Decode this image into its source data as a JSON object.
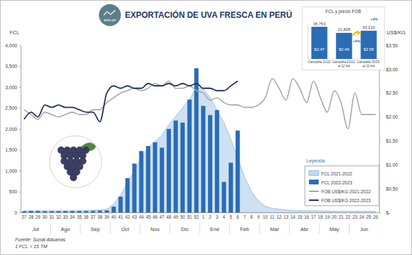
{
  "chart_data": [
    {
      "type": "combo",
      "title": "EXPORTACIÓN DE UVA FRESCA EN PERÚ",
      "logo": "adoc.pe",
      "ylabel": "FCL",
      "y2label": "US$/KG",
      "categories": [
        "27",
        "28",
        "29",
        "30",
        "31",
        "32",
        "33",
        "34",
        "35",
        "36",
        "37",
        "38",
        "39",
        "40",
        "41",
        "42",
        "43",
        "44",
        "45",
        "46",
        "47",
        "48",
        "49",
        "50",
        "51",
        "52",
        "1",
        "2",
        "3",
        "4",
        "5",
        "6",
        "7",
        "8",
        "9",
        "10",
        "11",
        "12",
        "13",
        "14",
        "15",
        "16",
        "17",
        "18",
        "19",
        "20",
        "21",
        "22",
        "23",
        "24",
        "25",
        "26"
      ],
      "month_labels": [
        "Jul",
        "Ago",
        "Sep",
        "Oct",
        "Nov",
        "Dic",
        "Ene",
        "Feb",
        "Mar",
        "Abr",
        "May",
        "Jun"
      ],
      "series": [
        {
          "name": "FCL 2021-2022",
          "type": "area",
          "color": "#c5daf0",
          "values": [
            40,
            40,
            45,
            45,
            40,
            40,
            45,
            45,
            50,
            50,
            55,
            60,
            80,
            200,
            420,
            700,
            1000,
            1300,
            1550,
            1700,
            1850,
            2100,
            2300,
            2500,
            2700,
            3000,
            2950,
            2750,
            2450,
            2150,
            1750,
            1300,
            850,
            500,
            280,
            150,
            100,
            80,
            60,
            50,
            45,
            40,
            40,
            35,
            35,
            30,
            30,
            30,
            30,
            30,
            30,
            30
          ]
        },
        {
          "name": "FCL 2022-2023",
          "type": "bar",
          "color": "#2a6db5",
          "values": [
            30,
            35,
            35,
            30,
            30,
            30,
            35,
            35,
            35,
            35,
            40,
            45,
            50,
            140,
            380,
            820,
            1170,
            1470,
            1590,
            1680,
            1550,
            2000,
            2200,
            2150,
            2700,
            3450,
            2550,
            2330,
            2450,
            730,
            1190,
            1960,
            null,
            null,
            null,
            null,
            null,
            null,
            null,
            null,
            null,
            null,
            null,
            null,
            null,
            null,
            null,
            null,
            null,
            null,
            null,
            null
          ]
        },
        {
          "name": "FOB US$/KG 2021-2022",
          "type": "line",
          "axis": "y2",
          "color": "#a6a6a6",
          "values": [
            2.15,
            2.05,
            1.95,
            2.1,
            2.05,
            2.0,
            2.05,
            2.1,
            2.05,
            2.05,
            2.15,
            2.15,
            2.3,
            2.4,
            2.5,
            2.55,
            2.6,
            2.55,
            2.6,
            2.7,
            2.65,
            2.75,
            2.6,
            2.6,
            2.65,
            2.55,
            2.5,
            2.35,
            2.4,
            2.3,
            2.25,
            2.25,
            2.2,
            2.2,
            2.25,
            2.4,
            2.8,
            2.6,
            2.35,
            2.8,
            2.6,
            2.3,
            2.75,
            2.4,
            2.1,
            2.55,
            2.3,
            1.75,
            2.5,
            2.05,
            2.05,
            2.05
          ]
        },
        {
          "name": "FOB US$/KG 2022-2023",
          "type": "line",
          "axis": "y2",
          "color": "#1f2f5c",
          "values": [
            1.95,
            2.1,
            2.0,
            2.25,
            2.2,
            2.25,
            2.2,
            2.2,
            2.15,
            2.1,
            2.1,
            1.9,
            2.5,
            2.65,
            2.6,
            2.65,
            2.6,
            2.6,
            2.7,
            2.65,
            2.65,
            2.7,
            2.65,
            2.7,
            2.65,
            2.7,
            2.6,
            2.6,
            2.55,
            2.55,
            2.65,
            2.75,
            null,
            null,
            null,
            null,
            null,
            null,
            null,
            null,
            null,
            null,
            null,
            null,
            null,
            null,
            null,
            null,
            null,
            null,
            null,
            null
          ]
        }
      ],
      "ylim": [
        0,
        4000
      ],
      "yticks": [
        0,
        500,
        {
          "value": 1000,
          "label": "1,000"
        },
        {
          "value": 1500,
          "label": "1,500"
        },
        {
          "value": 2000,
          "label": "2,000"
        },
        {
          "value": 2500,
          "label": "2,500"
        },
        {
          "value": 3000,
          "label": "3,000"
        },
        {
          "value": 3500,
          "label": "3,500"
        },
        {
          "value": 4000,
          "label": "4,000"
        }
      ],
      "y2lim": [
        0,
        3.5
      ],
      "y2ticks": [
        {
          "value": 0,
          "label": "$-"
        },
        {
          "value": 0.5,
          "label": "$0.50"
        },
        {
          "value": 1,
          "label": "$1.00"
        },
        {
          "value": 1.5,
          "label": "$1.50"
        },
        {
          "value": 2,
          "label": "$2.00"
        },
        {
          "value": 2.5,
          "label": "$2.50"
        },
        {
          "value": 3,
          "label": "$3.00"
        },
        {
          "value": 3.5,
          "label": "$3.50"
        }
      ],
      "grid": false,
      "legend": "bottom-right",
      "legend_title": "Leyenda",
      "source": [
        "Fuente: Sunat Aduanas",
        "1 FCL = 15 TM"
      ]
    },
    {
      "type": "bar",
      "title": "FCL y precio FOB",
      "categories": [
        "Campaña 21/22",
        "Campaña 21/22 al 12 feb",
        "Campaña 22/23 al 12 feb"
      ],
      "values": [
        35753,
        31828,
        33210
      ],
      "value_labels": [
        "35,753",
        "31,828",
        "33,210"
      ],
      "prices": [
        2.47,
        2.49,
        2.58
      ],
      "price_labels": [
        "$2.47",
        "$2.49",
        "$2.58"
      ],
      "annotations": [
        "+4%",
        "+4%"
      ],
      "color": "#2a6db5",
      "ylim": [
        15000,
        38000
      ],
      "data_labels": true,
      "tick_labels": false
    }
  ]
}
